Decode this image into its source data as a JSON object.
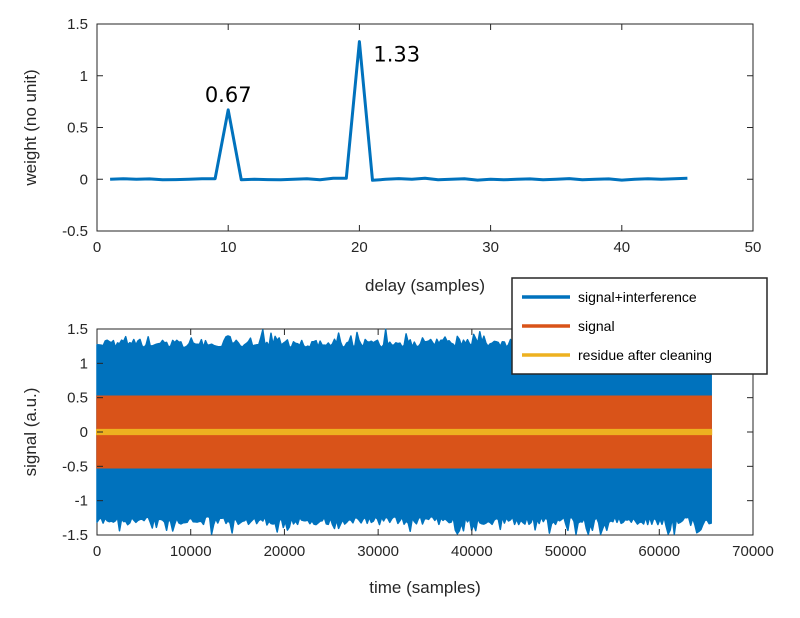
{
  "chart_data": [
    {
      "type": "line",
      "xlabel": "delay (samples)",
      "ylabel": "weight (no unit)",
      "xlim": [
        0,
        50
      ],
      "ylim": [
        -0.5,
        1.5
      ],
      "xticks": [
        0,
        10,
        20,
        30,
        40,
        50
      ],
      "yticks": [
        -0.5,
        0,
        0.5,
        1,
        1.5
      ],
      "grid": false,
      "series": [
        {
          "color": "#0072BD",
          "x": [
            1,
            2,
            3,
            4,
            5,
            6,
            7,
            8,
            9,
            10,
            11,
            12,
            13,
            14,
            15,
            16,
            17,
            18,
            19,
            20,
            21,
            22,
            23,
            24,
            25,
            26,
            27,
            28,
            29,
            30,
            31,
            32,
            33,
            34,
            35,
            36,
            37,
            38,
            39,
            40,
            41,
            42,
            43,
            44,
            45
          ],
          "y": [
            0.0,
            0.005,
            0.0,
            0.003,
            -0.005,
            -0.003,
            0.0,
            0.004,
            0.005,
            0.67,
            -0.005,
            0.0,
            -0.003,
            -0.005,
            0.0,
            0.005,
            -0.005,
            0.01,
            0.01,
            1.33,
            -0.01,
            0.0,
            0.006,
            0.0,
            0.01,
            -0.005,
            0.0,
            0.005,
            -0.008,
            0.0,
            -0.005,
            0.0,
            0.003,
            -0.005,
            0.0,
            0.006,
            -0.004,
            0.0,
            0.003,
            -0.008,
            0.0,
            0.005,
            0.0,
            0.004,
            0.01
          ]
        }
      ],
      "annotations": [
        {
          "text": "0.67",
          "x": 10,
          "y": 0.67
        },
        {
          "text": "1.33",
          "x": 20,
          "y": 1.33
        }
      ]
    },
    {
      "type": "line",
      "xlabel": "time (samples)",
      "ylabel": "signal (a.u.)",
      "xlim": [
        0,
        70000
      ],
      "ylim": [
        -1.5,
        1.5
      ],
      "xticks": [
        0,
        10000,
        20000,
        30000,
        40000,
        50000,
        60000,
        70000
      ],
      "yticks": [
        -1.5,
        -1,
        -0.5,
        0,
        0.5,
        1,
        1.5
      ],
      "grid": false,
      "legend_position": "top-right",
      "n_samples": 65536,
      "series": [
        {
          "name": "signal+interference",
          "color": "#0072BD",
          "typical_min": -1.35,
          "typical_max": 1.35,
          "peak_min": -1.5,
          "peak_max": 1.5
        },
        {
          "name": "signal",
          "color": "#D95319",
          "min": -0.52,
          "max": 0.52
        },
        {
          "name": "residue after cleaning",
          "color": "#EDB120",
          "min": -0.03,
          "max": 0.03
        }
      ]
    }
  ]
}
